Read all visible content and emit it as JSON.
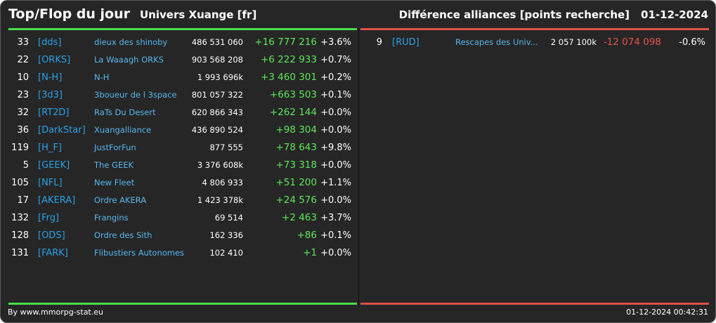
{
  "header": {
    "title": "Top/Flop du jour",
    "universe": "Univers Xuange [fr]",
    "metric": "Différence alliances [points recherche]",
    "date": "01-12-2024"
  },
  "colors": {
    "positive": "#5ee65a",
    "negative": "#e6524a",
    "tag": "#2aa1e6"
  },
  "top": [
    {
      "rank": "33",
      "tag": "[dds]",
      "name": "dieux des shinoby",
      "points": "486 531 060",
      "diff": "+16 777 216",
      "pct": "+3.6%"
    },
    {
      "rank": "22",
      "tag": "[ORKS]",
      "name": "La Waaagh ORKS",
      "points": "903 568 208",
      "diff": "+6 222 933",
      "pct": "+0.7%"
    },
    {
      "rank": "10",
      "tag": "[N-H]",
      "name": "N-H",
      "points": "1 993 696k",
      "diff": "+3 460 301",
      "pct": "+0.2%"
    },
    {
      "rank": "23",
      "tag": "[3d3]",
      "name": "3boueur de l 3space",
      "points": "801 057 322",
      "diff": "+663 503",
      "pct": "+0.1%"
    },
    {
      "rank": "32",
      "tag": "[RT2D]",
      "name": "RaTs Du Desert",
      "points": "620 866 343",
      "diff": "+262 144",
      "pct": "+0.0%"
    },
    {
      "rank": "36",
      "tag": "[DarkStar]",
      "name": "Xuangalliance",
      "points": "436 890 524",
      "diff": "+98 304",
      "pct": "+0.0%"
    },
    {
      "rank": "119",
      "tag": "[H_F]",
      "name": "JustForFun",
      "points": "877 555",
      "diff": "+78 643",
      "pct": "+9.8%"
    },
    {
      "rank": "5",
      "tag": "[GEEK]",
      "name": "The GEEK",
      "points": "3 376 608k",
      "diff": "+73 318",
      "pct": "+0.0%"
    },
    {
      "rank": "105",
      "tag": "[NFL]",
      "name": "New Fleet",
      "points": "4 806 933",
      "diff": "+51 200",
      "pct": "+1.1%"
    },
    {
      "rank": "17",
      "tag": "[AKERA]",
      "name": "Ordre AKERA",
      "points": "1 423 378k",
      "diff": "+24 576",
      "pct": "+0.0%"
    },
    {
      "rank": "132",
      "tag": "[Frg]",
      "name": "Frangins",
      "points": "69 514",
      "diff": "+2 463",
      "pct": "+3.7%"
    },
    {
      "rank": "128",
      "tag": "[ODS]",
      "name": "Ordre des Sith",
      "points": "162 336",
      "diff": "+86",
      "pct": "+0.1%"
    },
    {
      "rank": "131",
      "tag": "[FARK]",
      "name": "Flibustiers Autonomes",
      "points": "102 410",
      "diff": "+1",
      "pct": "+0.0%"
    }
  ],
  "flop": [
    {
      "rank": "9",
      "tag": "[RUD]",
      "name": "Rescapes des Univ...",
      "points": "2 057 100k",
      "diff": "-12 074 098",
      "pct": "-0.6%"
    }
  ],
  "footer": {
    "credit": "By www.mmorpg-stat.eu",
    "timestamp": "01-12-2024 00:42:31"
  }
}
